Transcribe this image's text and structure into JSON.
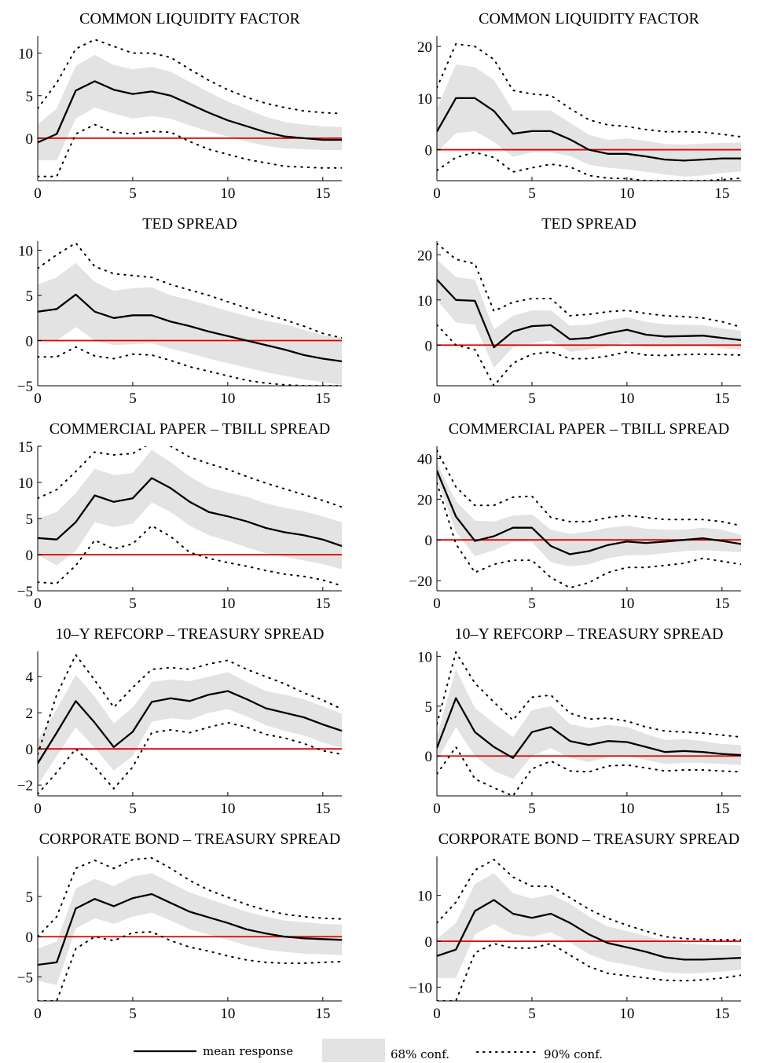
{
  "legend": {
    "mean_label": "mean response",
    "conf68_label": "68% conf.",
    "conf90_label": "90% conf."
  },
  "colors": {
    "mean": "#000000",
    "band68": "#e3e3e3",
    "band90": "#000000",
    "zero_line": "#e00000"
  },
  "chart_data": [
    {
      "type": "line",
      "title": "COMMON LIQUIDITY FACTOR",
      "xlim": [
        0,
        16
      ],
      "ylim": [
        -5,
        12
      ],
      "xticks": [
        0,
        5,
        10,
        15
      ],
      "yticks": [
        0,
        5,
        10
      ],
      "x": [
        0,
        1,
        2,
        3,
        4,
        5,
        6,
        7,
        8,
        9,
        10,
        11,
        12,
        13,
        14,
        15,
        16
      ],
      "mean": [
        -0.5,
        0.5,
        5.6,
        6.7,
        5.7,
        5.2,
        5.5,
        5.0,
        4.0,
        3.0,
        2.1,
        1.4,
        0.7,
        0.2,
        0.0,
        -0.2,
        -0.2
      ],
      "lo68": [
        -2.6,
        -2.6,
        2.3,
        3.6,
        2.9,
        2.3,
        2.6,
        2.3,
        1.5,
        0.8,
        0.2,
        -0.4,
        -0.9,
        -1.2,
        -1.3,
        -1.4,
        -1.4
      ],
      "hi68": [
        1.6,
        3.5,
        8.5,
        9.8,
        8.6,
        8.1,
        8.4,
        7.8,
        6.6,
        5.4,
        4.3,
        3.4,
        2.5,
        1.9,
        1.6,
        1.4,
        1.3
      ],
      "lo90": [
        -4.5,
        -4.5,
        0.5,
        1.6,
        0.7,
        0.5,
        0.8,
        0.7,
        -0.4,
        -1.3,
        -1.9,
        -2.5,
        -2.9,
        -3.3,
        -3.4,
        -3.5,
        -3.5
      ],
      "hi90": [
        3.5,
        6.5,
        10.5,
        11.6,
        10.8,
        10.0,
        10.0,
        9.5,
        8.1,
        6.8,
        5.7,
        4.8,
        4.1,
        3.6,
        3.2,
        3.0,
        2.9
      ]
    },
    {
      "type": "line",
      "title": "COMMON LIQUIDITY FACTOR",
      "xlim": [
        0,
        16
      ],
      "ylim": [
        -6,
        22
      ],
      "xticks": [
        0,
        5,
        10,
        15
      ],
      "yticks": [
        0,
        10,
        20
      ],
      "x": [
        0,
        1,
        2,
        3,
        4,
        5,
        6,
        7,
        8,
        9,
        10,
        11,
        12,
        13,
        14,
        15,
        16
      ],
      "mean": [
        3.5,
        10.0,
        10.0,
        7.5,
        3.1,
        3.6,
        3.6,
        2.0,
        0.0,
        -0.8,
        -0.8,
        -1.3,
        -1.9,
        -2.1,
        -1.9,
        -1.7,
        -1.7
      ],
      "lo68": [
        -0.5,
        3.2,
        3.6,
        1.5,
        -1.4,
        -0.5,
        -0.5,
        -1.2,
        -2.9,
        -3.5,
        -3.8,
        -4.3,
        -4.8,
        -5.2,
        -5.0,
        -4.5,
        -4.2
      ],
      "hi68": [
        8.0,
        16.5,
        16.0,
        13.5,
        7.6,
        7.6,
        7.6,
        5.2,
        2.9,
        1.9,
        2.2,
        1.7,
        1.1,
        1.0,
        1.2,
        1.3,
        1.4
      ],
      "lo90": [
        -4.0,
        -1.5,
        -0.5,
        -1.5,
        -4.3,
        -3.5,
        -2.8,
        -3.3,
        -5.0,
        -5.5,
        -5.6,
        -6.0,
        -6.0,
        -6.0,
        -6.0,
        -5.8,
        -5.5
      ],
      "hi90": [
        12.0,
        20.5,
        20.0,
        17.5,
        11.5,
        10.8,
        10.5,
        8.0,
        5.8,
        4.8,
        4.5,
        3.9,
        3.5,
        3.5,
        3.4,
        3.0,
        2.5
      ]
    },
    {
      "type": "line",
      "title": "TED SPREAD",
      "xlim": [
        0,
        16
      ],
      "ylim": [
        -5,
        11
      ],
      "xticks": [
        0,
        5,
        10,
        15
      ],
      "yticks": [
        -5,
        0,
        5,
        10
      ],
      "x": [
        0,
        1,
        2,
        3,
        4,
        5,
        6,
        7,
        8,
        9,
        10,
        11,
        12,
        13,
        14,
        15,
        16
      ],
      "mean": [
        3.2,
        3.5,
        5.1,
        3.2,
        2.5,
        2.8,
        2.8,
        2.1,
        1.6,
        1.0,
        0.5,
        0.0,
        -0.5,
        -1.0,
        -1.6,
        -2.0,
        -2.3
      ],
      "lo68": [
        0.0,
        0.0,
        1.5,
        0.0,
        -0.5,
        -0.4,
        -0.3,
        -0.9,
        -1.4,
        -2.0,
        -2.5,
        -3.0,
        -3.5,
        -3.9,
        -4.3,
        -4.6,
        -4.9
      ],
      "hi68": [
        6.2,
        7.0,
        8.6,
        6.5,
        5.5,
        5.8,
        5.9,
        5.0,
        4.5,
        3.9,
        3.3,
        2.7,
        2.2,
        1.8,
        1.2,
        0.6,
        0.3
      ],
      "lo90": [
        -1.8,
        -1.8,
        -0.7,
        -1.7,
        -2.0,
        -1.5,
        -1.6,
        -2.2,
        -2.9,
        -3.4,
        -3.9,
        -4.4,
        -4.7,
        -4.9,
        -5.0,
        -5.0,
        -5.0
      ],
      "hi90": [
        8.0,
        9.5,
        10.8,
        8.2,
        7.4,
        7.2,
        7.0,
        6.2,
        5.6,
        5.0,
        4.3,
        3.6,
        2.9,
        2.3,
        1.6,
        0.8,
        0.3
      ]
    },
    {
      "type": "line",
      "title": "TED SPREAD",
      "xlim": [
        0,
        16
      ],
      "ylim": [
        -9,
        23
      ],
      "xticks": [
        0,
        5,
        10,
        15
      ],
      "yticks": [
        0,
        10,
        20
      ],
      "x": [
        0,
        1,
        2,
        3,
        4,
        5,
        6,
        7,
        8,
        9,
        10,
        11,
        12,
        13,
        14,
        15,
        16
      ],
      "mean": [
        14.5,
        10.0,
        9.8,
        -0.5,
        3.0,
        4.2,
        4.4,
        1.3,
        1.6,
        2.6,
        3.4,
        2.3,
        1.9,
        2.0,
        2.1,
        1.6,
        1.1
      ],
      "lo68": [
        10.0,
        5.0,
        4.5,
        -5.0,
        -0.5,
        0.5,
        1.0,
        -1.5,
        -1.0,
        -0.3,
        0.5,
        -0.5,
        -0.5,
        -0.3,
        -0.3,
        -0.7,
        -1.0
      ],
      "hi68": [
        19.0,
        15.0,
        14.5,
        3.5,
        6.5,
        7.7,
        7.7,
        4.3,
        4.5,
        5.5,
        6.2,
        5.1,
        4.6,
        4.5,
        4.4,
        3.7,
        3.2
      ],
      "lo90": [
        4.5,
        0.0,
        -1.0,
        -9.0,
        -4.0,
        -2.0,
        -1.5,
        -3.0,
        -3.0,
        -2.4,
        -1.5,
        -2.2,
        -2.3,
        -2.1,
        -2.0,
        -2.1,
        -2.2
      ],
      "hi90": [
        22.5,
        19.0,
        18.0,
        7.5,
        9.5,
        10.3,
        10.3,
        6.5,
        6.8,
        7.4,
        7.7,
        7.0,
        6.5,
        6.3,
        6.0,
        5.2,
        4.0
      ]
    },
    {
      "type": "line",
      "title": "COMMERCIAL PAPER – TBILL SPREAD",
      "xlim": [
        0,
        16
      ],
      "ylim": [
        -5,
        15
      ],
      "xticks": [
        0,
        5,
        10,
        15
      ],
      "yticks": [
        -5,
        0,
        5,
        10,
        15
      ],
      "x": [
        0,
        1,
        2,
        3,
        4,
        5,
        6,
        7,
        8,
        9,
        10,
        11,
        12,
        13,
        14,
        15,
        16
      ],
      "mean": [
        2.3,
        2.1,
        4.5,
        8.2,
        7.3,
        7.8,
        10.6,
        9.2,
        7.3,
        5.9,
        5.3,
        4.6,
        3.7,
        3.1,
        2.7,
        2.1,
        1.2
      ],
      "lo68": [
        0.0,
        -1.5,
        0.5,
        4.5,
        3.8,
        4.3,
        7.2,
        5.9,
        4.0,
        2.7,
        1.9,
        1.0,
        0.2,
        -0.3,
        -0.8,
        -1.3,
        -2.0
      ],
      "hi68": [
        5.0,
        5.9,
        8.5,
        11.9,
        11.0,
        11.3,
        14.5,
        12.8,
        10.8,
        9.3,
        8.6,
        8.0,
        7.1,
        6.5,
        6.0,
        5.3,
        4.5
      ],
      "lo90": [
        -3.8,
        -4.0,
        -1.5,
        2.0,
        0.8,
        1.5,
        4.0,
        2.5,
        0.3,
        -0.5,
        -1.1,
        -1.6,
        -2.2,
        -2.7,
        -3.0,
        -3.5,
        -4.3
      ],
      "hi90": [
        7.8,
        9.0,
        11.5,
        14.2,
        13.8,
        14.0,
        15.5,
        15.0,
        13.5,
        12.6,
        11.8,
        10.8,
        9.9,
        9.1,
        8.3,
        7.5,
        6.6
      ]
    },
    {
      "type": "line",
      "title": "COMMERCIAL PAPER – TBILL SPREAD",
      "xlim": [
        0,
        16
      ],
      "ylim": [
        -25,
        46
      ],
      "xticks": [
        0,
        5,
        10,
        15
      ],
      "yticks": [
        -20,
        0,
        20,
        40
      ],
      "x": [
        0,
        1,
        2,
        3,
        4,
        5,
        6,
        7,
        8,
        9,
        10,
        11,
        12,
        13,
        14,
        15,
        16
      ],
      "mean": [
        34.0,
        11.5,
        -0.5,
        1.8,
        6.0,
        6.0,
        -3.0,
        -7.0,
        -5.5,
        -2.5,
        -0.8,
        -1.5,
        -0.8,
        0.0,
        0.8,
        -0.5,
        -2.0
      ],
      "lo68": [
        30.0,
        4.0,
        -8.0,
        -5.0,
        -1.0,
        -1.0,
        -11.0,
        -13.0,
        -12.0,
        -9.0,
        -7.5,
        -7.5,
        -6.5,
        -5.5,
        -5.0,
        -5.5,
        -6.0
      ],
      "hi68": [
        38.0,
        19.0,
        9.5,
        9.0,
        12.0,
        12.5,
        5.0,
        3.0,
        4.0,
        6.0,
        7.0,
        5.5,
        5.0,
        5.0,
        6.0,
        5.0,
        2.5
      ],
      "lo90": [
        28.0,
        -2.0,
        -16.0,
        -12.0,
        -10.0,
        -10.0,
        -18.5,
        -23.5,
        -21.0,
        -16.0,
        -13.5,
        -13.5,
        -12.5,
        -11.5,
        -9.0,
        -10.5,
        -12.0
      ],
      "hi90": [
        44.0,
        26.0,
        17.0,
        17.0,
        21.0,
        21.5,
        11.0,
        9.0,
        9.0,
        11.0,
        12.0,
        11.0,
        10.0,
        10.0,
        10.0,
        9.0,
        7.0
      ]
    },
    {
      "type": "line",
      "title": "10–Y REFCORP – TREASURY SPREAD",
      "xlim": [
        0,
        16
      ],
      "ylim": [
        -2.6,
        5.4
      ],
      "xticks": [
        0,
        5,
        10,
        15
      ],
      "yticks": [
        -2,
        0,
        2,
        4
      ],
      "x": [
        0,
        1,
        2,
        3,
        4,
        5,
        6,
        7,
        8,
        9,
        10,
        11,
        12,
        13,
        14,
        15,
        16
      ],
      "mean": [
        -0.8,
        0.9,
        2.65,
        1.45,
        0.1,
        0.95,
        2.6,
        2.8,
        2.65,
        3.0,
        3.2,
        2.75,
        2.25,
        2.0,
        1.75,
        1.35,
        1.0
      ],
      "lo68": [
        -2.0,
        -0.4,
        1.2,
        0.05,
        -1.2,
        -0.4,
        1.5,
        1.7,
        1.6,
        2.0,
        2.2,
        1.8,
        1.3,
        1.0,
        0.75,
        0.35,
        0.05
      ],
      "hi68": [
        0.5,
        2.2,
        4.1,
        2.9,
        1.4,
        2.3,
        3.7,
        3.85,
        3.75,
        4.0,
        4.25,
        3.7,
        3.2,
        3.0,
        2.75,
        2.35,
        1.95
      ],
      "lo90": [
        -2.5,
        -1.3,
        0.0,
        -1.0,
        -2.2,
        -1.0,
        0.9,
        1.05,
        0.9,
        1.2,
        1.45,
        1.2,
        0.8,
        0.6,
        0.3,
        -0.1,
        -0.3
      ],
      "hi90": [
        -0.3,
        3.0,
        5.2,
        3.8,
        2.3,
        3.4,
        4.4,
        4.5,
        4.4,
        4.7,
        4.9,
        4.4,
        4.0,
        3.6,
        3.1,
        2.7,
        2.2
      ]
    },
    {
      "type": "line",
      "title": "10–Y REFCORP – TREASURY SPREAD",
      "xlim": [
        0,
        16
      ],
      "ylim": [
        -4,
        10.5
      ],
      "xticks": [
        0,
        5,
        10,
        15
      ],
      "yticks": [
        0,
        5,
        10
      ],
      "x": [
        0,
        1,
        2,
        3,
        4,
        5,
        6,
        7,
        8,
        9,
        10,
        11,
        12,
        13,
        14,
        15,
        16
      ],
      "mean": [
        0.8,
        5.8,
        2.4,
        0.9,
        -0.2,
        2.4,
        2.9,
        1.5,
        1.1,
        1.5,
        1.4,
        0.9,
        0.4,
        0.5,
        0.4,
        0.2,
        0.1
      ],
      "lo68": [
        -0.5,
        2.9,
        0.0,
        -1.5,
        -2.3,
        0.0,
        0.8,
        -0.2,
        -0.6,
        -0.1,
        0.0,
        -0.4,
        -0.8,
        -0.7,
        -0.7,
        -0.8,
        -0.9
      ],
      "hi68": [
        2.0,
        8.7,
        4.8,
        3.3,
        1.9,
        4.6,
        5.0,
        3.2,
        2.8,
        3.1,
        2.9,
        2.2,
        1.6,
        1.7,
        1.5,
        1.2,
        1.1
      ],
      "lo90": [
        -1.8,
        0.9,
        -2.3,
        -3.2,
        -4.0,
        -1.3,
        -0.5,
        -1.5,
        -1.6,
        -1.0,
        -0.9,
        -1.2,
        -1.5,
        -1.4,
        -1.4,
        -1.5,
        -1.6
      ],
      "hi90": [
        3.2,
        10.4,
        7.3,
        5.4,
        3.6,
        5.9,
        6.1,
        4.3,
        3.7,
        3.8,
        3.5,
        2.9,
        2.5,
        2.4,
        2.3,
        2.1,
        1.9
      ]
    },
    {
      "type": "line",
      "title": "CORPORATE BOND – TREASURY SPREAD",
      "xlim": [
        0,
        16
      ],
      "ylim": [
        -8,
        10
      ],
      "xticks": [
        0,
        5,
        10,
        15
      ],
      "yticks": [
        -5,
        0,
        5
      ],
      "x": [
        0,
        1,
        2,
        3,
        4,
        5,
        6,
        7,
        8,
        9,
        10,
        11,
        12,
        13,
        14,
        15,
        16
      ],
      "mean": [
        -3.5,
        -3.2,
        3.5,
        4.7,
        3.8,
        4.8,
        5.3,
        4.2,
        3.1,
        2.4,
        1.7,
        0.9,
        0.4,
        0.0,
        -0.2,
        -0.3,
        -0.4
      ],
      "lo68": [
        -5.5,
        -6.0,
        1.0,
        2.3,
        1.6,
        2.5,
        3.0,
        2.0,
        0.9,
        0.3,
        -0.4,
        -1.1,
        -1.6,
        -1.9,
        -2.1,
        -2.2,
        -2.3
      ],
      "hi68": [
        -1.5,
        -0.6,
        6.0,
        7.2,
        6.3,
        7.5,
        7.9,
        6.7,
        5.5,
        4.7,
        3.9,
        3.1,
        2.5,
        2.0,
        1.8,
        1.6,
        1.5
      ],
      "lo90": [
        -8.0,
        -8.0,
        -1.5,
        0.0,
        -0.5,
        0.5,
        0.6,
        -0.5,
        -1.3,
        -1.8,
        -2.4,
        -2.9,
        -3.2,
        -3.3,
        -3.3,
        -3.2,
        -3.1
      ],
      "hi90": [
        0.0,
        2.5,
        8.5,
        9.5,
        8.5,
        9.6,
        9.8,
        8.5,
        7.0,
        5.8,
        4.9,
        4.0,
        3.3,
        2.8,
        2.5,
        2.3,
        2.2
      ]
    },
    {
      "type": "line",
      "title": "CORPORATE BOND – TREASURY SPREAD",
      "xlim": [
        0,
        16
      ],
      "ylim": [
        -13,
        18.5
      ],
      "xticks": [
        0,
        5,
        10,
        15
      ],
      "yticks": [
        -10,
        0,
        10
      ],
      "x": [
        0,
        1,
        2,
        3,
        4,
        5,
        6,
        7,
        8,
        9,
        10,
        11,
        12,
        13,
        14,
        15,
        16
      ],
      "mean": [
        -3.2,
        -1.8,
        6.6,
        9.0,
        6.0,
        5.1,
        6.0,
        4.0,
        1.5,
        -0.4,
        -1.3,
        -2.3,
        -3.5,
        -4.0,
        -4.0,
        -3.8,
        -3.6
      ],
      "lo68": [
        -8.0,
        -8.0,
        1.5,
        3.8,
        1.5,
        1.0,
        2.0,
        -0.2,
        -2.8,
        -4.4,
        -5.1,
        -6.0,
        -6.8,
        -7.0,
        -6.9,
        -6.6,
        -6.2
      ],
      "hi68": [
        0.5,
        4.0,
        12.5,
        14.8,
        10.5,
        9.3,
        10.2,
        8.2,
        5.4,
        3.2,
        2.2,
        1.2,
        0.0,
        -0.5,
        -0.7,
        -0.8,
        -0.9
      ],
      "lo90": [
        -13.0,
        -13.0,
        -2.5,
        -0.5,
        -1.5,
        -1.5,
        -0.5,
        -3.0,
        -5.5,
        -7.0,
        -7.5,
        -8.0,
        -8.5,
        -8.6,
        -8.4,
        -8.0,
        -7.4
      ],
      "hi90": [
        4.0,
        8.5,
        15.5,
        17.8,
        14.0,
        12.0,
        12.0,
        9.5,
        7.0,
        5.0,
        3.5,
        2.2,
        1.0,
        0.6,
        0.4,
        0.3,
        0.3
      ]
    }
  ]
}
